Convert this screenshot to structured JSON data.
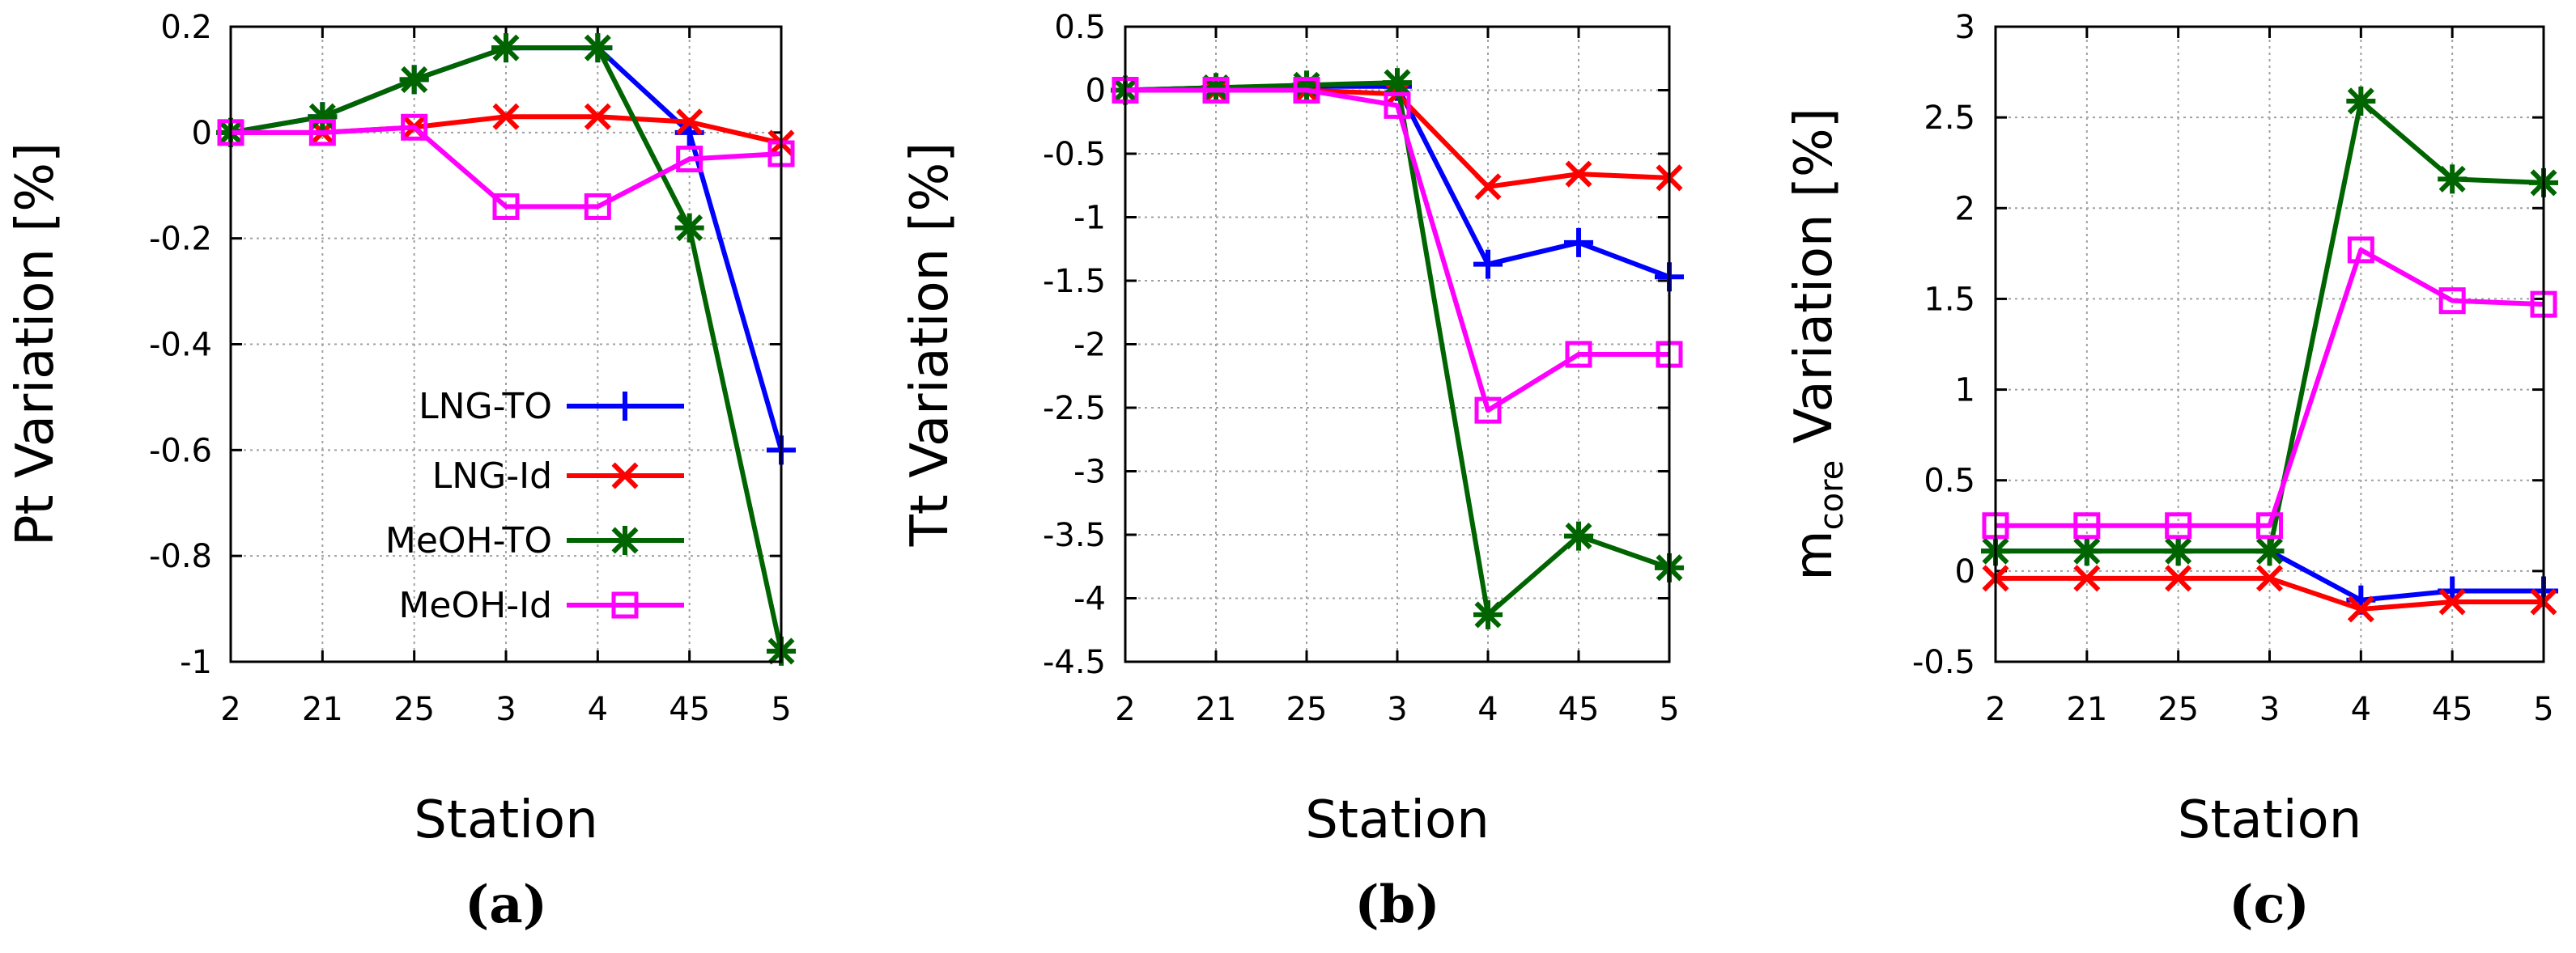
{
  "legend": {
    "series": [
      {
        "name": "LNG-TO",
        "color": "#0000ff",
        "marker": "plus"
      },
      {
        "name": "LNG-Id",
        "color": "#ff0000",
        "marker": "cross"
      },
      {
        "name": "MeOH-TO",
        "color": "#006400",
        "marker": "star"
      },
      {
        "name": "MeOH-Id",
        "color": "#ff00ff",
        "marker": "square"
      }
    ]
  },
  "chart_data": [
    {
      "type": "line",
      "panel_label": "(a)",
      "xlabel": "Station",
      "ylabel": "Pt Variation [%]",
      "ylabel_sub": "",
      "categories": [
        "2",
        "21",
        "25",
        "3",
        "4",
        "45",
        "5"
      ],
      "ylim": [
        -1,
        0.2
      ],
      "yticks": [
        -1,
        -0.8,
        -0.6,
        -0.4,
        -0.2,
        0,
        0.2
      ],
      "ytick_labels": [
        "-1",
        "-0.8",
        "-0.6",
        "-0.4",
        "-0.2",
        "0",
        "0.2"
      ],
      "grid": true,
      "legend_position": "bottom-left",
      "series": [
        {
          "name": "LNG-TO",
          "values": [
            0,
            0.03,
            0.1,
            0.16,
            0.16,
            0.0,
            -0.6
          ]
        },
        {
          "name": "LNG-Id",
          "values": [
            0,
            0,
            0.01,
            0.03,
            0.03,
            0.02,
            -0.02
          ]
        },
        {
          "name": "MeOH-TO",
          "values": [
            0,
            0.03,
            0.1,
            0.16,
            0.16,
            -0.18,
            -0.98
          ]
        },
        {
          "name": "MeOH-Id",
          "values": [
            0,
            0,
            0.01,
            -0.14,
            -0.14,
            -0.05,
            -0.04
          ]
        }
      ]
    },
    {
      "type": "line",
      "panel_label": "(b)",
      "xlabel": "Station",
      "ylabel": "Tt Variation [%]",
      "ylabel_sub": "",
      "categories": [
        "2",
        "21",
        "25",
        "3",
        "4",
        "45",
        "5"
      ],
      "ylim": [
        -4.5,
        0.5
      ],
      "yticks": [
        -4.5,
        -4,
        -3.5,
        -3,
        -2.5,
        -2,
        -1.5,
        -1,
        -0.5,
        0,
        0.5
      ],
      "ytick_labels": [
        "-4.5",
        "-4",
        "-3.5",
        "-3",
        "-2.5",
        "-2",
        "-1.5",
        "-1",
        "-0.5",
        "0",
        "0.5"
      ],
      "grid": true,
      "legend_position": "none",
      "series": [
        {
          "name": "LNG-TO",
          "values": [
            0,
            0.02,
            0.03,
            0.03,
            -1.37,
            -1.2,
            -1.47
          ]
        },
        {
          "name": "LNG-Id",
          "values": [
            0,
            0,
            0,
            -0.03,
            -0.76,
            -0.66,
            -0.69
          ]
        },
        {
          "name": "MeOH-TO",
          "values": [
            0,
            0.02,
            0.04,
            0.06,
            -4.13,
            -3.51,
            -3.76
          ]
        },
        {
          "name": "MeOH-Id",
          "values": [
            0,
            0,
            0,
            -0.12,
            -2.52,
            -2.08,
            -2.08
          ]
        }
      ]
    },
    {
      "type": "line",
      "panel_label": "(c)",
      "xlabel": "Station",
      "ylabel": "m",
      "ylabel_sub": "core",
      "ylabel_rest": " Variation [%]",
      "categories": [
        "2",
        "21",
        "25",
        "3",
        "4",
        "45",
        "5"
      ],
      "ylim": [
        -0.5,
        3
      ],
      "yticks": [
        -0.5,
        0,
        0.5,
        1,
        1.5,
        2,
        2.5,
        3
      ],
      "ytick_labels": [
        "-0.5",
        "0",
        "0.5",
        "1",
        "1.5",
        "2",
        "2.5",
        "3"
      ],
      "grid": true,
      "legend_position": "none",
      "series": [
        {
          "name": "LNG-TO",
          "values": [
            0.11,
            0.11,
            0.11,
            0.11,
            -0.16,
            -0.11,
            -0.11
          ]
        },
        {
          "name": "LNG-Id",
          "values": [
            -0.04,
            -0.04,
            -0.04,
            -0.04,
            -0.21,
            -0.17,
            -0.17
          ]
        },
        {
          "name": "MeOH-TO",
          "values": [
            0.11,
            0.11,
            0.11,
            0.11,
            2.59,
            2.16,
            2.14
          ]
        },
        {
          "name": "MeOH-Id",
          "values": [
            0.25,
            0.25,
            0.25,
            0.25,
            1.77,
            1.49,
            1.47
          ]
        }
      ]
    }
  ]
}
